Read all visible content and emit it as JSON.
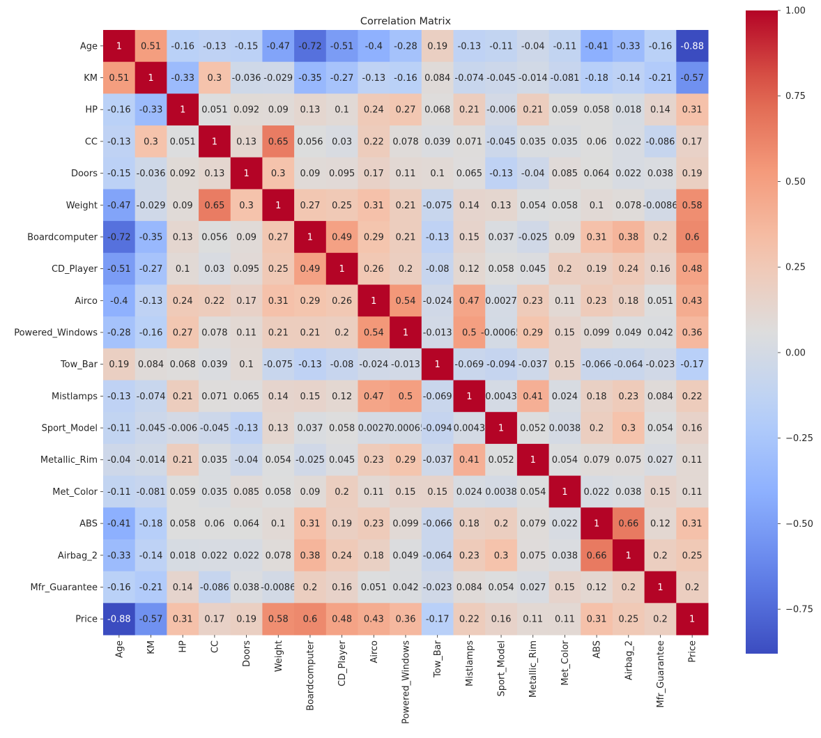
{
  "chart_data": {
    "type": "heatmap",
    "title": "Correlation Matrix",
    "colormap": "coolwarm",
    "vmin": -0.88,
    "vmax": 1,
    "colorbar_ticks": [
      "-0.75",
      "-0.50",
      "-0.25",
      "0.00",
      "0.25",
      "0.50",
      "0.75",
      "1.00"
    ],
    "labels": [
      "Age",
      "KM",
      "HP",
      "CC",
      "Doors",
      "Weight",
      "Boardcomputer",
      "CD_Player",
      "Airco",
      "Powered_Windows",
      "Tow_Bar",
      "Mistlamps",
      "Sport_Model",
      "Metallic_Rim",
      "Met_Color",
      "ABS",
      "Airbag_2",
      "Mfr_Guarantee",
      "Price"
    ],
    "values": [
      [
        1,
        0.51,
        -0.16,
        -0.13,
        -0.15,
        -0.47,
        -0.72,
        -0.51,
        -0.4,
        -0.28,
        0.19,
        -0.13,
        -0.11,
        -0.04,
        -0.11,
        -0.41,
        -0.33,
        -0.16,
        -0.88
      ],
      [
        0.51,
        1,
        -0.33,
        0.3,
        -0.036,
        -0.029,
        -0.35,
        -0.27,
        -0.13,
        -0.16,
        0.084,
        -0.074,
        -0.045,
        -0.014,
        -0.081,
        -0.18,
        -0.14,
        -0.21,
        -0.57
      ],
      [
        -0.16,
        -0.33,
        1,
        0.051,
        0.092,
        0.09,
        0.13,
        0.1,
        0.24,
        0.27,
        0.068,
        0.21,
        -0.006,
        0.21,
        0.059,
        0.058,
        0.018,
        0.14,
        0.31
      ],
      [
        -0.13,
        0.3,
        0.051,
        1,
        0.13,
        0.65,
        0.056,
        0.03,
        0.22,
        0.078,
        0.039,
        0.071,
        -0.045,
        0.035,
        0.035,
        0.06,
        0.022,
        -0.086,
        0.17
      ],
      [
        -0.15,
        -0.036,
        0.092,
        0.13,
        1,
        0.3,
        0.09,
        0.095,
        0.17,
        0.11,
        0.1,
        0.065,
        -0.13,
        -0.04,
        0.085,
        0.064,
        0.022,
        0.038,
        0.19
      ],
      [
        -0.47,
        -0.029,
        0.09,
        0.65,
        0.3,
        1,
        0.27,
        0.25,
        0.31,
        0.21,
        -0.075,
        0.14,
        0.13,
        0.054,
        0.058,
        0.1,
        0.078,
        -0.0086,
        0.58
      ],
      [
        -0.72,
        -0.35,
        0.13,
        0.056,
        0.09,
        0.27,
        1,
        0.49,
        0.29,
        0.21,
        -0.13,
        0.15,
        0.037,
        -0.025,
        0.09,
        0.31,
        0.38,
        0.2,
        0.6
      ],
      [
        -0.51,
        -0.27,
        0.1,
        0.03,
        0.095,
        0.25,
        0.49,
        1,
        0.26,
        0.2,
        -0.08,
        0.12,
        0.058,
        0.045,
        0.2,
        0.19,
        0.24,
        0.16,
        0.48
      ],
      [
        -0.4,
        -0.13,
        0.24,
        0.22,
        0.17,
        0.31,
        0.29,
        0.26,
        1,
        0.54,
        -0.024,
        0.47,
        0.0027,
        0.23,
        0.11,
        0.23,
        0.18,
        0.051,
        0.43
      ],
      [
        -0.28,
        -0.16,
        0.27,
        0.078,
        0.11,
        0.21,
        0.21,
        0.2,
        0.54,
        1,
        -0.013,
        0.5,
        -0.00065,
        0.29,
        0.15,
        0.099,
        0.049,
        0.042,
        0.36
      ],
      [
        0.19,
        0.084,
        0.068,
        0.039,
        0.1,
        -0.075,
        -0.13,
        -0.08,
        -0.024,
        -0.013,
        1,
        -0.069,
        -0.094,
        -0.037,
        0.15,
        -0.066,
        -0.064,
        -0.023,
        -0.17
      ],
      [
        -0.13,
        -0.074,
        0.21,
        0.071,
        0.065,
        0.14,
        0.15,
        0.12,
        0.47,
        0.5,
        -0.069,
        1,
        0.0043,
        0.41,
        0.024,
        0.18,
        0.23,
        0.084,
        0.22
      ],
      [
        -0.11,
        -0.045,
        -0.006,
        -0.045,
        -0.13,
        0.13,
        0.037,
        0.058,
        0.0027,
        -0.00065,
        -0.094,
        0.0043,
        1,
        0.052,
        0.0038,
        0.2,
        0.3,
        0.054,
        0.16
      ],
      [
        -0.04,
        -0.014,
        0.21,
        0.035,
        -0.04,
        0.054,
        -0.025,
        0.045,
        0.23,
        0.29,
        -0.037,
        0.41,
        0.052,
        1,
        0.054,
        0.079,
        0.075,
        0.027,
        0.11
      ],
      [
        -0.11,
        -0.081,
        0.059,
        0.035,
        0.085,
        0.058,
        0.09,
        0.2,
        0.11,
        0.15,
        0.15,
        0.024,
        0.0038,
        0.054,
        1,
        0.022,
        0.038,
        0.15,
        0.11
      ],
      [
        -0.41,
        -0.18,
        0.058,
        0.06,
        0.064,
        0.1,
        0.31,
        0.19,
        0.23,
        0.099,
        -0.066,
        0.18,
        0.2,
        0.079,
        0.022,
        1,
        0.66,
        0.12,
        0.31
      ],
      [
        -0.33,
        -0.14,
        0.018,
        0.022,
        0.022,
        0.078,
        0.38,
        0.24,
        0.18,
        0.049,
        -0.064,
        0.23,
        0.3,
        0.075,
        0.038,
        0.66,
        1,
        0.2,
        0.25
      ],
      [
        -0.16,
        -0.21,
        0.14,
        -0.086,
        0.038,
        -0.0086,
        0.2,
        0.16,
        0.051,
        0.042,
        -0.023,
        0.084,
        0.054,
        0.027,
        0.15,
        0.12,
        0.2,
        1,
        0.2
      ],
      [
        -0.88,
        -0.57,
        0.31,
        0.17,
        0.19,
        0.58,
        0.6,
        0.48,
        0.43,
        0.36,
        -0.17,
        0.22,
        0.16,
        0.11,
        0.11,
        0.31,
        0.25,
        0.2,
        1
      ]
    ],
    "annotated": true,
    "grid": false,
    "legend": "colorbar-right"
  }
}
